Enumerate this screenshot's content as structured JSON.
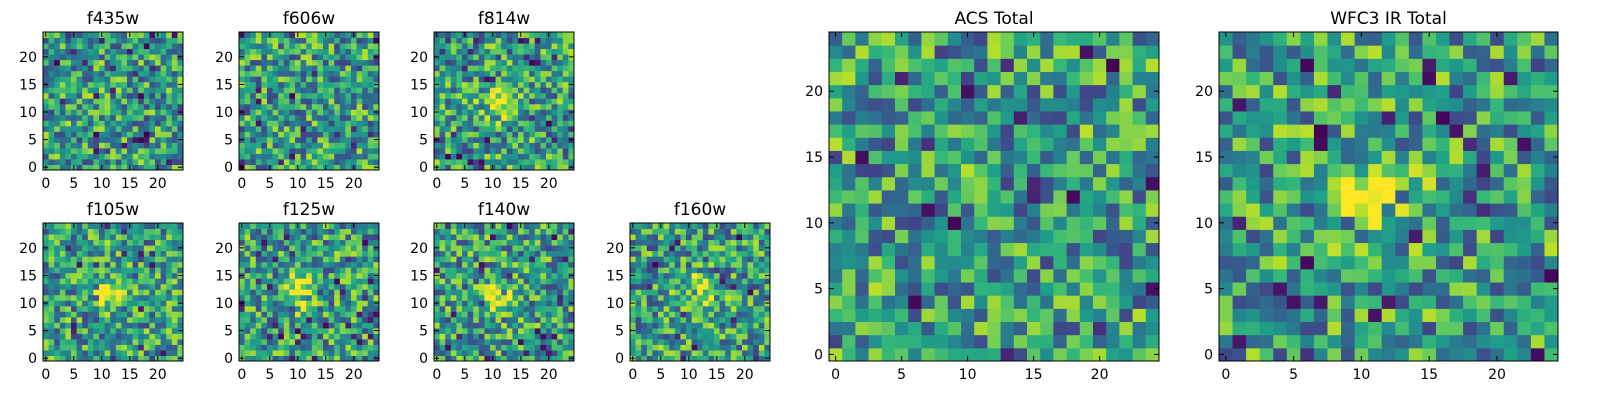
{
  "chart_data": [
    {
      "type": "heatmap",
      "title": "f435w",
      "xlim": [
        -0.5,
        24.5
      ],
      "ylim": [
        -0.5,
        24.5
      ],
      "xticks": [
        0,
        5,
        10,
        15,
        20
      ],
      "yticks": [
        0,
        5,
        10,
        15,
        20
      ],
      "xtick_labels": [
        "0",
        "5",
        "10",
        "15",
        "20"
      ],
      "ytick_labels": [
        "0",
        "5",
        "10",
        "15",
        "20"
      ],
      "colormap": "viridis",
      "grid_size": [
        25,
        25
      ],
      "source_peak": null
    },
    {
      "type": "heatmap",
      "title": "f606w",
      "xlim": [
        -0.5,
        24.5
      ],
      "ylim": [
        -0.5,
        24.5
      ],
      "xticks": [
        0,
        5,
        10,
        15,
        20
      ],
      "yticks": [
        0,
        5,
        10,
        15,
        20
      ],
      "xtick_labels": [
        "0",
        "5",
        "10",
        "15",
        "20"
      ],
      "ytick_labels": [
        "0",
        "5",
        "10",
        "15",
        "20"
      ],
      "colormap": "viridis",
      "grid_size": [
        25,
        25
      ],
      "source_peak": null
    },
    {
      "type": "heatmap",
      "title": "f814w",
      "xlim": [
        -0.5,
        24.5
      ],
      "ylim": [
        -0.5,
        24.5
      ],
      "xticks": [
        0,
        5,
        10,
        15,
        20
      ],
      "yticks": [
        0,
        5,
        10,
        15,
        20
      ],
      "xtick_labels": [
        "0",
        "5",
        "10",
        "15",
        "20"
      ],
      "ytick_labels": [
        "0",
        "5",
        "10",
        "15",
        "20"
      ],
      "colormap": "viridis",
      "grid_size": [
        25,
        25
      ],
      "source_peak": [
        11,
        12
      ]
    },
    {
      "type": "heatmap",
      "title": "f105w",
      "xlim": [
        -0.5,
        24.5
      ],
      "ylim": [
        -0.5,
        24.5
      ],
      "xticks": [
        0,
        5,
        10,
        15,
        20
      ],
      "yticks": [
        0,
        5,
        10,
        15,
        20
      ],
      "xtick_labels": [
        "0",
        "5",
        "10",
        "15",
        "20"
      ],
      "ytick_labels": [
        "0",
        "5",
        "10",
        "15",
        "20"
      ],
      "colormap": "viridis",
      "grid_size": [
        25,
        25
      ],
      "source_peak": [
        11,
        12
      ]
    },
    {
      "type": "heatmap",
      "title": "f125w",
      "xlim": [
        -0.5,
        24.5
      ],
      "ylim": [
        -0.5,
        24.5
      ],
      "xticks": [
        0,
        5,
        10,
        15,
        20
      ],
      "yticks": [
        0,
        5,
        10,
        15,
        20
      ],
      "xtick_labels": [
        "0",
        "5",
        "10",
        "15",
        "20"
      ],
      "ytick_labels": [
        "0",
        "5",
        "10",
        "15",
        "20"
      ],
      "colormap": "viridis",
      "grid_size": [
        25,
        25
      ],
      "source_peak": [
        11,
        12
      ]
    },
    {
      "type": "heatmap",
      "title": "f140w",
      "xlim": [
        -0.5,
        24.5
      ],
      "ylim": [
        -0.5,
        24.5
      ],
      "xticks": [
        0,
        5,
        10,
        15,
        20
      ],
      "yticks": [
        0,
        5,
        10,
        15,
        20
      ],
      "xtick_labels": [
        "0",
        "5",
        "10",
        "15",
        "20"
      ],
      "ytick_labels": [
        "0",
        "5",
        "10",
        "15",
        "20"
      ],
      "colormap": "viridis",
      "grid_size": [
        25,
        25
      ],
      "source_peak": [
        11,
        11
      ]
    },
    {
      "type": "heatmap",
      "title": "f160w",
      "xlim": [
        -0.5,
        24.5
      ],
      "ylim": [
        -0.5,
        24.5
      ],
      "xticks": [
        0,
        5,
        10,
        15,
        20
      ],
      "yticks": [
        0,
        5,
        10,
        15,
        20
      ],
      "xtick_labels": [
        "0",
        "5",
        "10",
        "15",
        "20"
      ],
      "ytick_labels": [
        "0",
        "5",
        "10",
        "15",
        "20"
      ],
      "colormap": "viridis",
      "grid_size": [
        25,
        25
      ],
      "source_peak": [
        12,
        12
      ]
    },
    {
      "type": "heatmap",
      "title": "ACS Total",
      "xlim": [
        -0.5,
        24.5
      ],
      "ylim": [
        -0.5,
        24.5
      ],
      "xticks": [
        0,
        5,
        10,
        15,
        20
      ],
      "yticks": [
        0,
        5,
        10,
        15,
        20
      ],
      "xtick_labels": [
        "0",
        "5",
        "10",
        "15",
        "20"
      ],
      "ytick_labels": [
        "0",
        "5",
        "10",
        "15",
        "20"
      ],
      "colormap": "viridis",
      "grid_size": [
        25,
        25
      ],
      "source_peak": null
    },
    {
      "type": "heatmap",
      "title": "WFC3 IR Total",
      "xlim": [
        -0.5,
        24.5
      ],
      "ylim": [
        -0.5,
        24.5
      ],
      "xticks": [
        0,
        5,
        10,
        15,
        20
      ],
      "yticks": [
        0,
        5,
        10,
        15,
        20
      ],
      "xtick_labels": [
        "0",
        "5",
        "10",
        "15",
        "20"
      ],
      "ytick_labels": [
        "0",
        "5",
        "10",
        "15",
        "20"
      ],
      "colormap": "viridis",
      "grid_size": [
        25,
        25
      ],
      "source_peak": [
        11,
        12
      ]
    }
  ]
}
